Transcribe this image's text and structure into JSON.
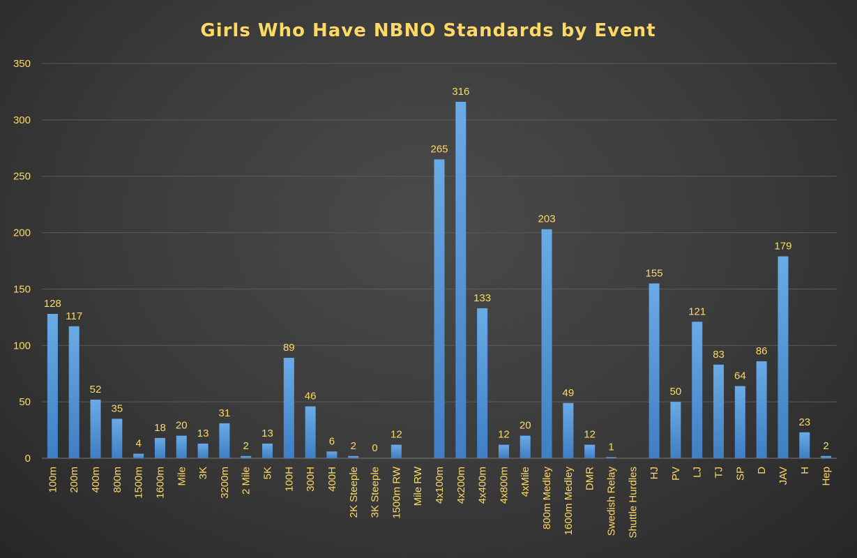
{
  "chart_data": {
    "type": "bar",
    "title": "Girls Who Have NBNO Standards by Event",
    "xlabel": "",
    "ylabel": "",
    "ylim": [
      0,
      350
    ],
    "yticks": [
      0,
      50,
      100,
      150,
      200,
      250,
      300,
      350
    ],
    "grid": true,
    "legend": "none",
    "bar_color": "#5b9bd5",
    "label_color": "#ffd966",
    "categories": [
      "100m",
      "200m",
      "400m",
      "800m",
      "1500m",
      "1600m",
      "Mile",
      "3K",
      "3200m",
      "2 Mile",
      "5K",
      "100H",
      "300H",
      "400H",
      "2K Steeple",
      "3K Steeple",
      "1500m RW",
      "Mile RW",
      "4x100m",
      "4x200m",
      "4x400m",
      "4x800m",
      "4xMile",
      "800m Medley",
      "1600m Medley",
      "DMR",
      "Swedish Relay",
      "Shuttle Hurdles",
      "HJ",
      "PV",
      "LJ",
      "TJ",
      "SP",
      "D",
      "JAV",
      "H",
      "Hep"
    ],
    "values": [
      128,
      117,
      52,
      35,
      4,
      18,
      20,
      13,
      31,
      2,
      13,
      89,
      46,
      6,
      2,
      0,
      12,
      null,
      265,
      316,
      133,
      12,
      20,
      203,
      49,
      12,
      1,
      null,
      155,
      50,
      121,
      83,
      64,
      86,
      179,
      23,
      2
    ],
    "data_labels": [
      "128",
      "117",
      "52",
      "35",
      "4",
      "18",
      "20",
      "13",
      "31",
      "2",
      "13",
      "89",
      "46",
      "6",
      "2",
      "0",
      "12",
      "",
      "265",
      "316",
      "133",
      "12",
      "20",
      "203",
      "49",
      "12",
      "1",
      "",
      "155",
      "50",
      "121",
      "83",
      "64",
      "86",
      "179",
      "23",
      "2"
    ]
  }
}
